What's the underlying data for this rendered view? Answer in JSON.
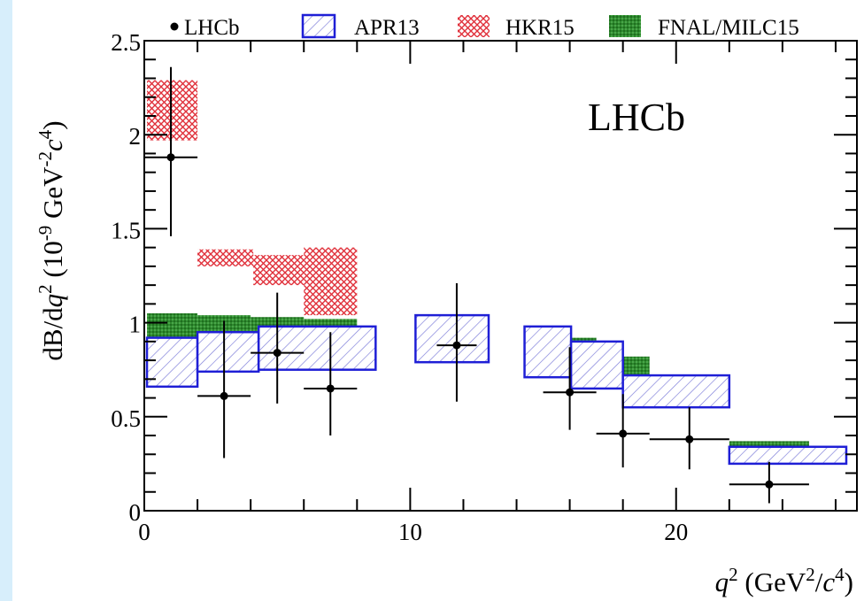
{
  "chart_data": {
    "type": "scatter",
    "annotation": "LHCb",
    "xlabel": {
      "var": "q",
      "sup": "2",
      "unit_open": " (GeV",
      "unit_sup": "2",
      "unit_mid": "/",
      "unit_var": "c",
      "unit_sup2": "4",
      "unit_close": ")"
    },
    "ylabel": {
      "pre": "dB/d",
      "var": "q",
      "sup": "2",
      "unit_open": " (10",
      "unit_exp": "-9",
      "unit_mid": " GeV",
      "unit_exp2": "-2",
      "unit_var": "c",
      "unit_exp3": "4",
      "unit_close": ")"
    },
    "xlim": [
      0,
      26.8
    ],
    "ylim": [
      0,
      2.5
    ],
    "xticks": [
      0,
      10,
      20
    ],
    "xtick_labels": [
      "0",
      "10",
      "20"
    ],
    "yticks": [
      0,
      0.5,
      1,
      1.5,
      2,
      2.5
    ],
    "ytick_labels": [
      "0",
      "0.5",
      "1",
      "1.5",
      "2",
      "2.5"
    ],
    "grid": false,
    "legend": {
      "placement": "top",
      "entries": [
        {
          "label": "LHCb",
          "style": "point"
        },
        {
          "label": "APR13",
          "style": "hatch-blue"
        },
        {
          "label": "HKR15",
          "style": "crosshatch-red"
        },
        {
          "label": "FNAL/MILC15",
          "style": "fill-green"
        }
      ]
    },
    "series": [
      {
        "name": "LHCb",
        "kind": "points",
        "color": "#000000",
        "points": [
          {
            "x": 1.0,
            "xlo": 0.0,
            "xhi": 2.0,
            "y": 1.88,
            "ylo": 1.46,
            "yhi": 2.36
          },
          {
            "x": 3.0,
            "xlo": 2.0,
            "xhi": 4.0,
            "y": 0.61,
            "ylo": 0.28,
            "yhi": 1.01
          },
          {
            "x": 5.0,
            "xlo": 4.0,
            "xhi": 6.0,
            "y": 0.84,
            "ylo": 0.57,
            "yhi": 1.16
          },
          {
            "x": 7.0,
            "xlo": 6.0,
            "xhi": 8.0,
            "y": 0.65,
            "ylo": 0.4,
            "yhi": 0.95
          },
          {
            "x": 11.75,
            "xlo": 11.0,
            "xhi": 12.5,
            "y": 0.88,
            "ylo": 0.58,
            "yhi": 1.21
          },
          {
            "x": 16.0,
            "xlo": 15.0,
            "xhi": 17.0,
            "y": 0.63,
            "ylo": 0.43,
            "yhi": 0.87
          },
          {
            "x": 18.0,
            "xlo": 17.0,
            "xhi": 19.0,
            "y": 0.41,
            "ylo": 0.23,
            "yhi": 0.62
          },
          {
            "x": 20.5,
            "xlo": 19.0,
            "xhi": 22.0,
            "y": 0.38,
            "ylo": 0.22,
            "yhi": 0.55
          },
          {
            "x": 23.5,
            "xlo": 22.0,
            "xhi": 25.0,
            "y": 0.14,
            "ylo": 0.04,
            "yhi": 0.26
          }
        ]
      },
      {
        "name": "APR13",
        "kind": "boxes",
        "color": "#1f1fd6",
        "boxes": [
          {
            "x0": 0.1,
            "x1": 2.0,
            "y0": 0.66,
            "y1": 0.92
          },
          {
            "x0": 2.0,
            "x1": 4.3,
            "y0": 0.74,
            "y1": 0.95
          },
          {
            "x0": 4.3,
            "x1": 8.7,
            "y0": 0.75,
            "y1": 0.98
          },
          {
            "x0": 10.2,
            "x1": 12.95,
            "y0": 0.79,
            "y1": 1.04
          },
          {
            "x0": 14.3,
            "x1": 16.05,
            "y0": 0.71,
            "y1": 0.98
          },
          {
            "x0": 16.05,
            "x1": 18.0,
            "y0": 0.65,
            "y1": 0.9
          },
          {
            "x0": 18.0,
            "x1": 22.0,
            "y0": 0.55,
            "y1": 0.72
          },
          {
            "x0": 22.0,
            "x1": 26.4,
            "y0": 0.25,
            "y1": 0.34
          }
        ]
      },
      {
        "name": "HKR15",
        "kind": "boxes",
        "color": "#e0303a",
        "boxes": [
          {
            "x0": 0.1,
            "x1": 2.0,
            "y0": 1.97,
            "y1": 2.29
          },
          {
            "x0": 2.0,
            "x1": 4.1,
            "y0": 1.3,
            "y1": 1.39
          },
          {
            "x0": 4.1,
            "x1": 6.0,
            "y0": 1.2,
            "y1": 1.36
          },
          {
            "x0": 6.0,
            "x1": 8.0,
            "y0": 1.04,
            "y1": 1.4
          }
        ]
      },
      {
        "name": "FNAL/MILC15",
        "kind": "boxes",
        "color": "#2e8a2e",
        "boxes": [
          {
            "x0": 0.1,
            "x1": 2.0,
            "y0": 0.85,
            "y1": 1.05
          },
          {
            "x0": 2.0,
            "x1": 4.0,
            "y0": 0.85,
            "y1": 1.04
          },
          {
            "x0": 4.0,
            "x1": 6.0,
            "y0": 0.84,
            "y1": 1.03
          },
          {
            "x0": 6.0,
            "x1": 8.0,
            "y0": 0.82,
            "y1": 1.02
          },
          {
            "x0": 15.0,
            "x1": 17.0,
            "y0": 0.76,
            "y1": 0.92
          },
          {
            "x0": 17.0,
            "x1": 19.0,
            "y0": 0.7,
            "y1": 0.82
          },
          {
            "x0": 19.0,
            "x1": 22.0,
            "y0": 0.6,
            "y1": 0.67
          },
          {
            "x0": 22.0,
            "x1": 25.0,
            "y0": 0.33,
            "y1": 0.37
          }
        ]
      }
    ]
  }
}
